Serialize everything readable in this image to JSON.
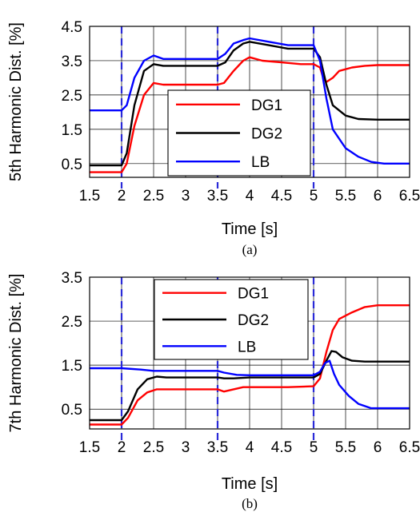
{
  "chart_data": [
    {
      "type": "line",
      "caption": "(a)",
      "xlabel": "Time [s]",
      "ylabel": "5th Harmonic Dist. [%]",
      "xlim": [
        1.5,
        6.5
      ],
      "ylim": [
        0.1,
        4.5
      ],
      "xticks": [
        "1.5",
        "2",
        "2.5",
        "3",
        "3.5",
        "4",
        "4.5",
        "5",
        "5.5",
        "6",
        "6.5"
      ],
      "yticks": [
        "0.5",
        "1.5",
        "2.5",
        "3.5",
        "4.5"
      ],
      "grid": true,
      "legend_position": "center-bottom",
      "event_lines": [
        2,
        3.5,
        5
      ],
      "series": [
        {
          "name": "DG1",
          "color": "#ff0000",
          "x": [
            1.5,
            2.0,
            2.08,
            2.2,
            2.35,
            2.5,
            2.65,
            2.8,
            3.5,
            3.6,
            3.75,
            3.9,
            4.0,
            4.2,
            4.5,
            4.8,
            5.0,
            5.1,
            5.15,
            5.2,
            5.3,
            5.4,
            5.6,
            5.8,
            6.0,
            6.5
          ],
          "y": [
            0.25,
            0.25,
            0.5,
            1.6,
            2.5,
            2.85,
            2.8,
            2.8,
            2.8,
            2.85,
            3.2,
            3.5,
            3.6,
            3.5,
            3.45,
            3.4,
            3.4,
            3.3,
            3.0,
            2.88,
            3.0,
            3.2,
            3.3,
            3.35,
            3.37,
            3.37
          ]
        },
        {
          "name": "DG2",
          "color": "#000000",
          "x": [
            1.5,
            2.0,
            2.08,
            2.2,
            2.35,
            2.5,
            2.65,
            3.5,
            3.62,
            3.75,
            3.9,
            4.0,
            4.3,
            4.6,
            5.0,
            5.1,
            5.2,
            5.3,
            5.5,
            5.7,
            6.0,
            6.5
          ],
          "y": [
            0.45,
            0.45,
            0.8,
            2.2,
            3.2,
            3.4,
            3.35,
            3.35,
            3.45,
            3.8,
            4.0,
            4.05,
            3.95,
            3.85,
            3.85,
            3.6,
            2.8,
            2.2,
            1.9,
            1.8,
            1.78,
            1.78
          ]
        },
        {
          "name": "LB",
          "color": "#0000ff",
          "x": [
            1.5,
            2.0,
            2.08,
            2.2,
            2.35,
            2.5,
            2.65,
            3.5,
            3.62,
            3.75,
            3.9,
            4.0,
            4.3,
            4.6,
            5.0,
            5.1,
            5.2,
            5.3,
            5.5,
            5.7,
            5.9,
            6.1,
            6.5
          ],
          "y": [
            2.05,
            2.05,
            2.2,
            3.0,
            3.5,
            3.65,
            3.55,
            3.55,
            3.7,
            4.0,
            4.1,
            4.15,
            4.05,
            3.95,
            3.95,
            3.5,
            2.4,
            1.5,
            0.95,
            0.7,
            0.55,
            0.5,
            0.5
          ]
        }
      ]
    },
    {
      "type": "line",
      "caption": "(b)",
      "xlabel": "Time [s]",
      "ylabel": "7th Harmonic Dist. [%]",
      "xlim": [
        1.5,
        6.5
      ],
      "ylim": [
        0.05,
        3.5
      ],
      "xticks": [
        "1.5",
        "2",
        "2.5",
        "3",
        "3.5",
        "4",
        "4.5",
        "5",
        "5.5",
        "6",
        "6.5"
      ],
      "yticks": [
        "0.5",
        "1.5",
        "2.5",
        "3.5"
      ],
      "grid": true,
      "legend_position": "top-center",
      "event_lines": [
        2,
        3.5,
        5
      ],
      "series": [
        {
          "name": "DG1",
          "color": "#ff0000",
          "x": [
            1.5,
            2.0,
            2.1,
            2.25,
            2.4,
            2.55,
            2.7,
            3.5,
            3.6,
            3.75,
            3.9,
            4.2,
            4.6,
            5.0,
            5.1,
            5.2,
            5.3,
            5.4,
            5.6,
            5.8,
            6.0,
            6.5
          ],
          "y": [
            0.15,
            0.15,
            0.3,
            0.7,
            0.88,
            0.95,
            0.95,
            0.95,
            0.9,
            0.95,
            1.0,
            1.0,
            1.0,
            1.02,
            1.2,
            1.8,
            2.3,
            2.55,
            2.7,
            2.82,
            2.86,
            2.86
          ]
        },
        {
          "name": "DG2",
          "color": "#000000",
          "x": [
            1.5,
            2.0,
            2.1,
            2.25,
            2.4,
            2.55,
            2.7,
            3.5,
            3.6,
            3.75,
            4.0,
            4.5,
            5.0,
            5.1,
            5.2,
            5.28,
            5.35,
            5.45,
            5.6,
            5.8,
            6.5
          ],
          "y": [
            0.25,
            0.25,
            0.45,
            0.95,
            1.18,
            1.24,
            1.22,
            1.22,
            1.2,
            1.2,
            1.22,
            1.22,
            1.22,
            1.3,
            1.6,
            1.82,
            1.8,
            1.68,
            1.6,
            1.58,
            1.58
          ]
        },
        {
          "name": "LB",
          "color": "#0000ff",
          "x": [
            1.5,
            2.0,
            2.3,
            2.5,
            3.0,
            3.5,
            3.6,
            3.8,
            4.0,
            4.5,
            5.0,
            5.1,
            5.18,
            5.25,
            5.32,
            5.4,
            5.55,
            5.7,
            5.9,
            6.5
          ],
          "y": [
            1.43,
            1.43,
            1.4,
            1.37,
            1.37,
            1.37,
            1.33,
            1.28,
            1.27,
            1.27,
            1.27,
            1.35,
            1.55,
            1.6,
            1.3,
            1.05,
            0.8,
            0.62,
            0.52,
            0.52
          ]
        }
      ]
    }
  ]
}
